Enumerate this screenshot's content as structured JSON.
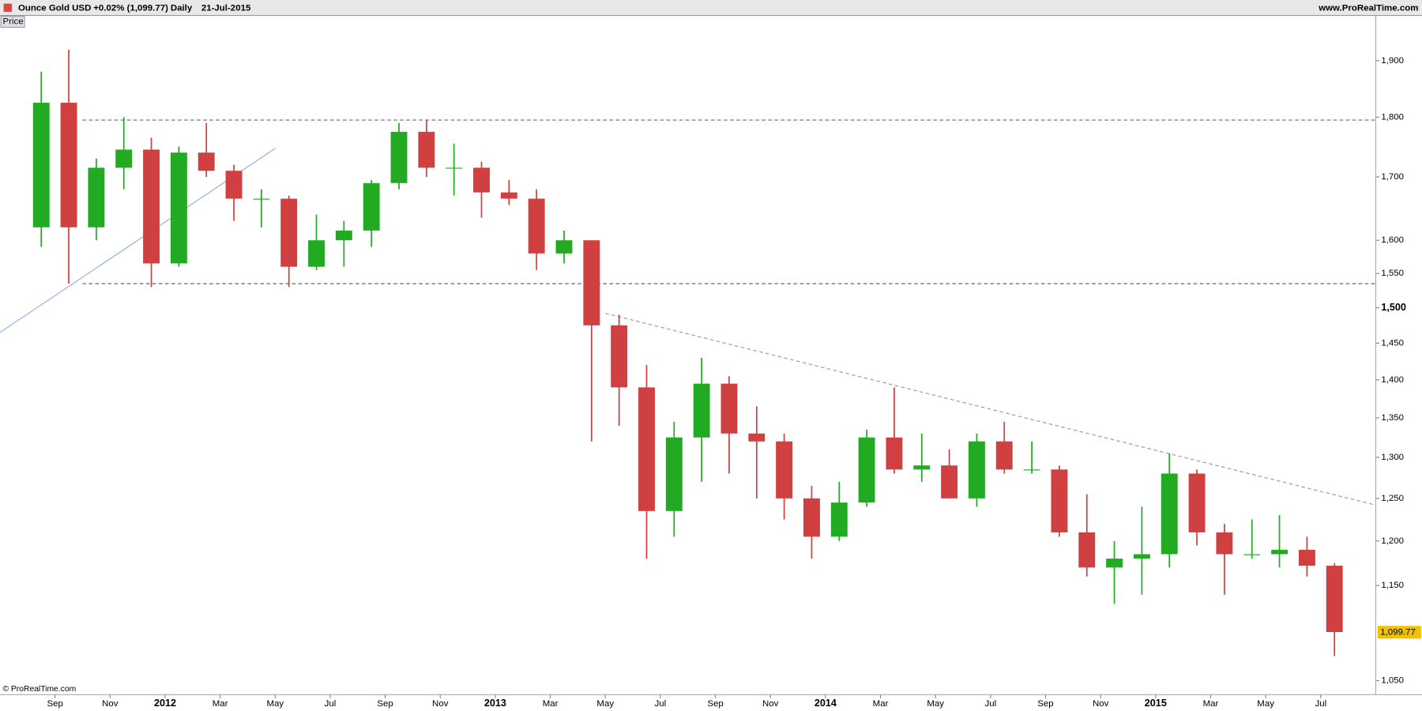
{
  "chart_data": {
    "type": "candlestick",
    "title": "Ounce Gold USD",
    "change": "+0.02% (1,099.77)",
    "interval": "Daily",
    "date": "21-Jul-2015",
    "site": "www.ProRealTime.com",
    "panel_label": "Price",
    "copyright": "© ProRealTime.com",
    "log_scale": true,
    "up_color": "#22aa22",
    "down_color": "#d04040",
    "ylim": [
      1036,
      1984
    ],
    "yticks": [
      {
        "value": 1050,
        "label": "1,050"
      },
      {
        "value": 1150,
        "label": "1,150"
      },
      {
        "value": 1200,
        "label": "1,200"
      },
      {
        "value": 1250,
        "label": "1,250"
      },
      {
        "value": 1300,
        "label": "1,300"
      },
      {
        "value": 1350,
        "label": "1,350"
      },
      {
        "value": 1400,
        "label": "1,400"
      },
      {
        "value": 1450,
        "label": "1,450"
      },
      {
        "value": 1500,
        "label": "1,500"
      },
      {
        "value": 1550,
        "label": "1,550"
      },
      {
        "value": 1600,
        "label": "1,600"
      },
      {
        "value": 1700,
        "label": "1,700"
      },
      {
        "value": 1800,
        "label": "1,800"
      },
      {
        "value": 1900,
        "label": "1,900"
      }
    ],
    "bold_tick": 1500,
    "xlim": [
      "2011-07",
      "2015-09"
    ],
    "xticks": [
      {
        "value": "2011-09",
        "label": "Sep"
      },
      {
        "value": "2011-11",
        "label": "Nov"
      },
      {
        "value": "2012-01",
        "label": "2012"
      },
      {
        "value": "2012-03",
        "label": "Mar"
      },
      {
        "value": "2012-05",
        "label": "May"
      },
      {
        "value": "2012-07",
        "label": "Jul"
      },
      {
        "value": "2012-09",
        "label": "Sep"
      },
      {
        "value": "2012-11",
        "label": "Nov"
      },
      {
        "value": "2013-01",
        "label": "2013"
      },
      {
        "value": "2013-03",
        "label": "Mar"
      },
      {
        "value": "2013-05",
        "label": "May"
      },
      {
        "value": "2013-07",
        "label": "Jul"
      },
      {
        "value": "2013-09",
        "label": "Sep"
      },
      {
        "value": "2013-11",
        "label": "Nov"
      },
      {
        "value": "2014-01",
        "label": "2014"
      },
      {
        "value": "2014-03",
        "label": "Mar"
      },
      {
        "value": "2014-05",
        "label": "May"
      },
      {
        "value": "2014-07",
        "label": "Jul"
      },
      {
        "value": "2014-09",
        "label": "Sep"
      },
      {
        "value": "2014-11",
        "label": "Nov"
      },
      {
        "value": "2015-01",
        "label": "2015"
      },
      {
        "value": "2015-03",
        "label": "Mar"
      },
      {
        "value": "2015-05",
        "label": "May"
      },
      {
        "value": "2015-07",
        "label": "Jul"
      }
    ],
    "x": [
      "2011-08",
      "2011-09",
      "2011-10",
      "2011-11",
      "2011-12",
      "2012-01",
      "2012-02",
      "2012-03",
      "2012-04",
      "2012-05",
      "2012-06",
      "2012-07",
      "2012-08",
      "2012-09",
      "2012-10",
      "2012-11",
      "2012-12",
      "2013-01",
      "2013-02",
      "2013-03",
      "2013-04",
      "2013-05",
      "2013-06",
      "2013-07",
      "2013-08",
      "2013-09",
      "2013-10",
      "2013-11",
      "2013-12",
      "2014-01",
      "2014-02",
      "2014-03",
      "2014-04",
      "2014-05",
      "2014-06",
      "2014-07",
      "2014-08",
      "2014-09",
      "2014-10",
      "2014-11",
      "2014-12",
      "2015-01",
      "2015-02",
      "2015-03",
      "2015-04",
      "2015-05",
      "2015-06",
      "2015-07"
    ],
    "open": [
      1620,
      1825,
      1620,
      1715,
      1745,
      1565,
      1740,
      1710,
      1665,
      1665,
      1560,
      1600,
      1615,
      1690,
      1775,
      1715,
      1715,
      1675,
      1665,
      1580,
      1600,
      1475,
      1390,
      1235,
      1325,
      1395,
      1330,
      1320,
      1250,
      1205,
      1245,
      1325,
      1285,
      1290,
      1250,
      1320,
      1285,
      1285,
      1210,
      1170,
      1180,
      1185,
      1280,
      1210,
      1185,
      1185,
      1190,
      1172
    ],
    "high": [
      1880,
      1920,
      1730,
      1800,
      1765,
      1750,
      1790,
      1720,
      1680,
      1670,
      1640,
      1630,
      1695,
      1790,
      1795,
      1755,
      1725,
      1695,
      1680,
      1615,
      1600,
      1490,
      1420,
      1345,
      1430,
      1405,
      1365,
      1330,
      1265,
      1270,
      1335,
      1390,
      1330,
      1310,
      1330,
      1345,
      1320,
      1290,
      1255,
      1200,
      1240,
      1305,
      1285,
      1220,
      1225,
      1230,
      1205,
      1175
    ],
    "low": [
      1590,
      1535,
      1600,
      1680,
      1530,
      1560,
      1700,
      1630,
      1620,
      1530,
      1555,
      1560,
      1590,
      1680,
      1700,
      1670,
      1635,
      1655,
      1555,
      1565,
      1320,
      1340,
      1180,
      1205,
      1270,
      1280,
      1250,
      1225,
      1180,
      1200,
      1240,
      1280,
      1270,
      1250,
      1240,
      1280,
      1280,
      1205,
      1160,
      1130,
      1140,
      1170,
      1195,
      1140,
      1180,
      1170,
      1160,
      1075
    ],
    "close": [
      1825,
      1620,
      1715,
      1745,
      1565,
      1740,
      1710,
      1665,
      1665,
      1560,
      1600,
      1615,
      1690,
      1775,
      1715,
      1715,
      1675,
      1665,
      1580,
      1600,
      1475,
      1390,
      1235,
      1325,
      1395,
      1330,
      1320,
      1250,
      1205,
      1245,
      1325,
      1285,
      1290,
      1250,
      1320,
      1285,
      1285,
      1210,
      1170,
      1180,
      1185,
      1280,
      1210,
      1185,
      1185,
      1190,
      1172,
      1100
    ],
    "last_price": 1099.77,
    "last_label": "1,099.77",
    "last_color": "#f2c200",
    "lines": [
      {
        "x": [
          "2011-10",
          "2015-09"
        ],
        "y": [
          1795,
          1795
        ],
        "color": "#777777",
        "dashed": true
      },
      {
        "x": [
          "2011-10",
          "2015-09"
        ],
        "y": [
          1535,
          1535
        ],
        "color": "#555555",
        "dashed": true
      },
      {
        "x": [
          "2013-05",
          "2015-09"
        ],
        "y": [
          1492,
          1242
        ],
        "color": "#999999",
        "dashed": true
      },
      {
        "x": [
          "2011-07",
          "2012-05"
        ],
        "y": [
          1465,
          1747
        ],
        "color": "#8fb0e8",
        "dashed": false
      }
    ]
  }
}
